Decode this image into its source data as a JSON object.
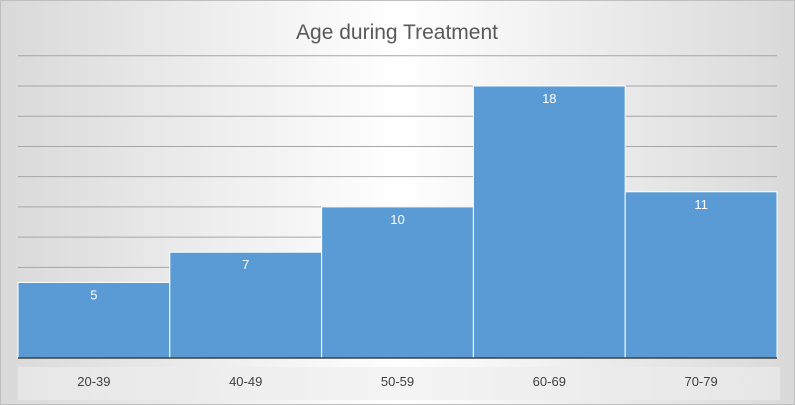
{
  "chart_data": {
    "type": "bar",
    "title": "Age during Treatment",
    "xlabel": "",
    "ylabel": "",
    "categories": [
      "20-39",
      "40-49",
      "50-59",
      "60-69",
      "70-79"
    ],
    "values": [
      5,
      7,
      10,
      18,
      11
    ],
    "ylim": [
      0,
      18
    ],
    "grid": true,
    "legend": "none",
    "bar_color": "#5b9bd5",
    "data_labels": true
  }
}
